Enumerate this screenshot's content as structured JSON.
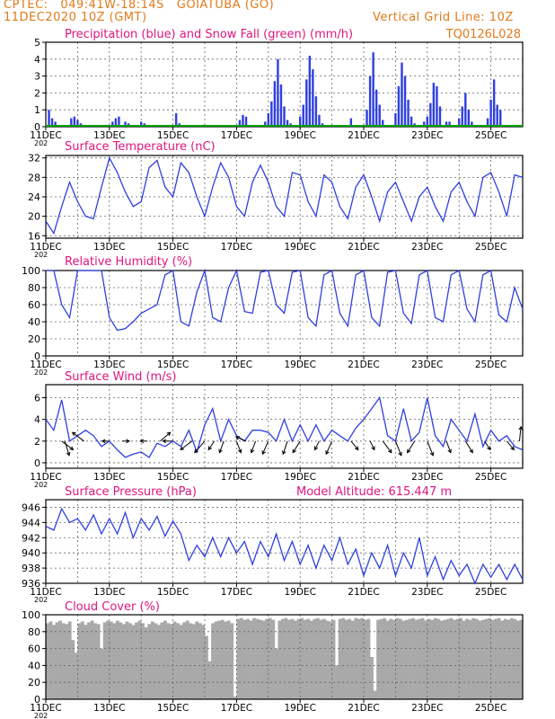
{
  "header": {
    "line1": "CPTEC:   049:41W-18:14S   GOIATUBA (GO)",
    "line2": "11DEC2020 10Z (GMT)",
    "grid_note": "Vertical Grid Line: 10Z",
    "model": "TQ0126L028"
  },
  "colors": {
    "orange": "#e07a1a",
    "magenta": "#e0157f",
    "blue": "#2f3fe0",
    "green": "#00a000",
    "gray": "#a9a9a9",
    "black": "#000000"
  },
  "x_axis": {
    "labels": [
      "11DEC",
      "13DEC",
      "15DEC",
      "17DEC",
      "19DEC",
      "21DEC",
      "23DEC",
      "25DEC"
    ],
    "label_days": [
      0,
      2,
      4,
      6,
      8,
      10,
      12,
      14
    ],
    "year_stub": "202",
    "range_days": [
      0,
      15
    ]
  },
  "chart_data": [
    {
      "id": "precip",
      "type": "bar",
      "title": "Precipitation (blue) and Snow Fall (green) (mm/h)",
      "ylim": [
        0,
        5
      ],
      "yticks": [
        0,
        1,
        2,
        3,
        4,
        5
      ],
      "x": [
        0.1,
        0.2,
        0.3,
        0.5,
        0.8,
        0.9,
        1.0,
        1.1,
        1.2,
        1.6,
        1.8,
        2.1,
        2.2,
        2.3,
        2.5,
        2.6,
        2.7,
        3.0,
        3.1,
        3.2,
        3.3,
        3.4,
        3.6,
        3.8,
        4.1,
        4.2,
        5.5,
        6.1,
        6.2,
        6.3,
        6.9,
        7.0,
        7.1,
        7.2,
        7.3,
        7.4,
        7.5,
        7.6,
        7.7,
        8.0,
        8.1,
        8.2,
        8.3,
        8.4,
        8.5,
        8.6,
        8.7,
        9.5,
        9.6,
        10.1,
        10.2,
        10.3,
        10.4,
        10.5,
        10.6,
        10.7,
        11.0,
        11.1,
        11.2,
        11.3,
        11.4,
        11.5,
        11.6,
        11.9,
        12.0,
        12.1,
        12.2,
        12.3,
        12.4,
        12.6,
        12.7,
        12.8,
        13.0,
        13.1,
        13.2,
        13.3,
        13.4,
        13.9,
        14.0,
        14.1,
        14.2,
        14.3
      ],
      "values": [
        1.0,
        0.5,
        0.3,
        0.1,
        0.5,
        0.6,
        0.4,
        0.2,
        0.1,
        0.1,
        0.1,
        0.3,
        0.5,
        0.6,
        0.3,
        0.2,
        0.1,
        0.3,
        0.2,
        0.1,
        0.1,
        0.1,
        0.1,
        0.1,
        0.8,
        0.2,
        0.1,
        0.4,
        0.7,
        0.6,
        0.3,
        0.8,
        1.5,
        2.7,
        4.0,
        2.5,
        1.2,
        0.4,
        0.2,
        0.6,
        1.3,
        2.8,
        4.2,
        3.4,
        1.8,
        0.7,
        0.2,
        0.1,
        0.5,
        1.0,
        3.0,
        4.4,
        2.2,
        1.3,
        0.4,
        0.1,
        0.8,
        2.4,
        3.8,
        3.0,
        1.6,
        0.6,
        0.2,
        0.3,
        0.6,
        1.4,
        2.6,
        2.4,
        1.2,
        0.3,
        0.3,
        0.1,
        0.5,
        1.2,
        2.0,
        1.0,
        0.3,
        0.5,
        1.6,
        2.8,
        1.3,
        1.0
      ],
      "snow": 0
    },
    {
      "id": "temp",
      "type": "line",
      "title": "Surface Temperature (nC)",
      "ylim": [
        15.5,
        32.5
      ],
      "yticks": [
        16,
        20,
        24,
        28,
        32
      ],
      "x": [
        0.0,
        0.25,
        0.5,
        0.75,
        1.0,
        1.25,
        1.5,
        1.75,
        2.0,
        2.25,
        2.5,
        2.75,
        3.0,
        3.25,
        3.5,
        3.75,
        4.0,
        4.25,
        4.5,
        4.75,
        5.0,
        5.25,
        5.5,
        5.75,
        6.0,
        6.25,
        6.5,
        6.75,
        7.0,
        7.25,
        7.5,
        7.75,
        8.0,
        8.25,
        8.5,
        8.75,
        9.0,
        9.25,
        9.5,
        9.75,
        10.0,
        10.25,
        10.5,
        10.75,
        11.0,
        11.25,
        11.5,
        11.75,
        12.0,
        12.25,
        12.5,
        12.75,
        13.0,
        13.25,
        13.5,
        13.75,
        14.0,
        14.25,
        14.5,
        14.75,
        15.0
      ],
      "values": [
        19,
        16.5,
        22,
        27,
        23,
        20,
        19.5,
        26,
        32,
        29,
        25,
        22,
        23,
        30,
        31.5,
        26,
        24,
        31,
        29,
        24,
        20,
        26,
        31,
        28,
        22,
        20,
        27,
        30.5,
        27,
        22,
        20,
        29,
        28.5,
        23,
        20,
        28.5,
        27,
        22,
        19.5,
        26,
        28.5,
        24,
        19,
        25,
        27,
        23,
        19,
        24,
        26,
        22,
        19,
        25,
        27,
        23,
        20,
        28,
        29,
        25,
        20,
        28.5,
        28
      ]
    },
    {
      "id": "rh",
      "type": "line",
      "title": "Relative Humidity (%)",
      "ylim": [
        0,
        100
      ],
      "yticks": [
        0,
        20,
        40,
        60,
        80,
        100
      ],
      "x": [
        0.0,
        0.25,
        0.5,
        0.75,
        1.0,
        1.25,
        1.5,
        1.75,
        2.0,
        2.25,
        2.5,
        2.75,
        3.0,
        3.25,
        3.5,
        3.75,
        4.0,
        4.25,
        4.5,
        4.75,
        5.0,
        5.25,
        5.5,
        5.75,
        6.0,
        6.25,
        6.5,
        6.75,
        7.0,
        7.25,
        7.5,
        7.75,
        8.0,
        8.25,
        8.5,
        8.75,
        9.0,
        9.25,
        9.5,
        9.75,
        10.0,
        10.25,
        10.5,
        10.75,
        11.0,
        11.25,
        11.5,
        11.75,
        12.0,
        12.25,
        12.5,
        12.75,
        13.0,
        13.25,
        13.5,
        13.75,
        14.0,
        14.25,
        14.5,
        14.75,
        15.0
      ],
      "values": [
        100,
        100,
        60,
        45,
        100,
        100,
        100,
        100,
        45,
        30,
        32,
        40,
        50,
        55,
        60,
        95,
        100,
        40,
        35,
        75,
        100,
        45,
        40,
        80,
        100,
        52,
        50,
        98,
        100,
        60,
        50,
        98,
        100,
        45,
        35,
        95,
        100,
        50,
        35,
        95,
        100,
        45,
        35,
        98,
        100,
        50,
        38,
        95,
        100,
        45,
        40,
        95,
        100,
        55,
        40,
        95,
        100,
        48,
        40,
        80,
        55
      ]
    },
    {
      "id": "wind",
      "type": "line",
      "title": "Surface Wind (m/s)",
      "ylim": [
        -0.5,
        7.2
      ],
      "yticks": [
        0,
        2,
        4,
        6
      ],
      "x": [
        0.0,
        0.25,
        0.5,
        0.75,
        1.0,
        1.25,
        1.5,
        1.75,
        2.0,
        2.25,
        2.5,
        2.75,
        3.0,
        3.25,
        3.5,
        3.75,
        4.0,
        4.25,
        4.5,
        4.75,
        5.0,
        5.25,
        5.5,
        5.75,
        6.0,
        6.25,
        6.5,
        6.75,
        7.0,
        7.25,
        7.5,
        7.75,
        8.0,
        8.25,
        8.5,
        8.75,
        9.0,
        9.25,
        9.5,
        9.75,
        10.0,
        10.25,
        10.5,
        10.75,
        11.0,
        11.25,
        11.5,
        11.75,
        12.0,
        12.25,
        12.5,
        12.75,
        13.0,
        13.25,
        13.5,
        13.75,
        14.0,
        14.25,
        14.5,
        14.75,
        15.0
      ],
      "values": [
        4,
        3,
        5.8,
        2,
        2.5,
        3,
        2.5,
        1.5,
        2,
        1.2,
        0.5,
        0.8,
        1,
        0.5,
        1.8,
        1.5,
        2,
        1.5,
        3,
        1,
        3.5,
        5,
        2,
        4,
        2.5,
        2,
        3,
        3,
        2.8,
        2,
        4,
        2,
        3.5,
        2,
        3.5,
        2,
        3,
        2.5,
        2,
        3.2,
        4,
        5,
        6,
        2.5,
        2,
        5,
        2,
        2.8,
        6,
        2.5,
        1.5,
        4,
        3,
        2,
        4.5,
        1.5,
        3,
        2,
        2.5,
        1.5,
        1.2
      ],
      "arrows": [
        {
          "x": 0.5,
          "u": 0.8,
          "v": -0.6
        },
        {
          "x": 0.6,
          "u": 0.3,
          "v": -1.0
        },
        {
          "x": 1.2,
          "u": -0.8,
          "v": 0.6
        },
        {
          "x": 2.0,
          "u": -0.5,
          "v": 0.0
        },
        {
          "x": 2.4,
          "u": 0.5,
          "v": 0.0
        },
        {
          "x": 3.2,
          "u": -0.5,
          "v": 0.0
        },
        {
          "x": 3.6,
          "u": 0.7,
          "v": 0.6
        },
        {
          "x": 4.0,
          "u": -0.7,
          "v": 0.0
        },
        {
          "x": 4.6,
          "u": -0.8,
          "v": -0.6
        },
        {
          "x": 5.0,
          "u": -0.7,
          "v": -0.8
        },
        {
          "x": 5.3,
          "u": -0.4,
          "v": -0.6
        },
        {
          "x": 5.6,
          "u": -0.3,
          "v": -0.8
        },
        {
          "x": 6.0,
          "u": 0.3,
          "v": -0.8
        },
        {
          "x": 6.3,
          "u": -0.7,
          "v": 0.3
        },
        {
          "x": 6.6,
          "u": -0.3,
          "v": -0.8
        },
        {
          "x": 7.0,
          "u": -0.4,
          "v": -0.9
        },
        {
          "x": 7.6,
          "u": -0.3,
          "v": -0.9
        },
        {
          "x": 8.0,
          "u": -0.5,
          "v": -0.8
        },
        {
          "x": 8.6,
          "u": -0.3,
          "v": -0.6
        },
        {
          "x": 9.0,
          "u": -0.4,
          "v": -0.9
        },
        {
          "x": 9.6,
          "u": 0.5,
          "v": -0.6
        },
        {
          "x": 10.2,
          "u": 0.3,
          "v": -0.6
        },
        {
          "x": 10.6,
          "u": 0.6,
          "v": -0.8
        },
        {
          "x": 11.0,
          "u": 0.4,
          "v": -1.0
        },
        {
          "x": 11.6,
          "u": -0.5,
          "v": -0.8
        },
        {
          "x": 12.0,
          "u": 0.4,
          "v": -1.0
        },
        {
          "x": 12.6,
          "u": 0.3,
          "v": -0.8
        },
        {
          "x": 13.2,
          "u": 0.5,
          "v": -0.8
        },
        {
          "x": 13.8,
          "u": 0.4,
          "v": -0.6
        },
        {
          "x": 14.5,
          "u": 0.5,
          "v": -0.6
        },
        {
          "x": 14.9,
          "u": 0.1,
          "v": 1.0
        }
      ]
    },
    {
      "id": "pressure",
      "type": "line",
      "title": "Surface Pressure (hPa)",
      "subtitle": "Model Altitude: 615.447 m",
      "ylim": [
        936,
        947
      ],
      "yticks": [
        936,
        938,
        940,
        942,
        944,
        946
      ],
      "x": [
        0.0,
        0.25,
        0.5,
        0.75,
        1.0,
        1.25,
        1.5,
        1.75,
        2.0,
        2.25,
        2.5,
        2.75,
        3.0,
        3.25,
        3.5,
        3.75,
        4.0,
        4.25,
        4.5,
        4.75,
        5.0,
        5.25,
        5.5,
        5.75,
        6.0,
        6.25,
        6.5,
        6.75,
        7.0,
        7.25,
        7.5,
        7.75,
        8.0,
        8.25,
        8.5,
        8.75,
        9.0,
        9.25,
        9.5,
        9.75,
        10.0,
        10.25,
        10.5,
        10.75,
        11.0,
        11.25,
        11.5,
        11.75,
        12.0,
        12.25,
        12.5,
        12.75,
        13.0,
        13.25,
        13.5,
        13.75,
        14.0,
        14.25,
        14.5,
        14.75,
        15.0
      ],
      "values": [
        943.5,
        943,
        945.8,
        944,
        944.5,
        943,
        945,
        942.5,
        944.5,
        942.5,
        945.3,
        942,
        944.5,
        943,
        944.8,
        942.2,
        944.2,
        942.5,
        939,
        941,
        939.5,
        942,
        939.5,
        942,
        940,
        941.5,
        938.5,
        941.5,
        939.5,
        942.5,
        939,
        941.5,
        938.5,
        941,
        938,
        941,
        939,
        942,
        938.5,
        940.5,
        937,
        940,
        938,
        941,
        937,
        940,
        938,
        942,
        937,
        939.5,
        936.5,
        939,
        937,
        938.5,
        936,
        938.5,
        936.8,
        938.5,
        936.5,
        938.5,
        936.5
      ]
    },
    {
      "id": "cloud",
      "type": "area",
      "title": "Cloud Cover (%)",
      "ylim": [
        0,
        100
      ],
      "yticks": [
        0,
        20,
        40,
        60,
        80,
        100
      ],
      "x": [
        0.0,
        0.1,
        0.2,
        0.3,
        0.4,
        0.5,
        0.6,
        0.7,
        0.8,
        0.9,
        1.0,
        1.1,
        1.2,
        1.3,
        1.4,
        1.5,
        1.6,
        1.7,
        1.8,
        1.9,
        2.0,
        2.1,
        2.2,
        2.3,
        2.4,
        2.5,
        2.6,
        2.7,
        2.8,
        2.9,
        3.0,
        3.1,
        3.2,
        3.3,
        3.4,
        3.5,
        3.6,
        3.7,
        3.8,
        3.9,
        4.0,
        4.1,
        4.2,
        4.3,
        4.4,
        4.5,
        4.6,
        4.7,
        4.8,
        4.9,
        5.0,
        5.1,
        5.2,
        5.3,
        5.4,
        5.5,
        5.6,
        5.7,
        5.8,
        5.9,
        6.0,
        6.1,
        6.2,
        6.3,
        6.4,
        6.5,
        6.6,
        6.7,
        6.8,
        6.9,
        7.0,
        7.1,
        7.2,
        7.3,
        7.4,
        7.5,
        7.6,
        7.7,
        7.8,
        7.9,
        8.0,
        8.1,
        8.2,
        8.3,
        8.4,
        8.5,
        8.6,
        8.7,
        8.8,
        8.9,
        9.0,
        9.1,
        9.2,
        9.3,
        9.4,
        9.5,
        9.6,
        9.7,
        9.8,
        9.9,
        10.0,
        10.1,
        10.2,
        10.3,
        10.4,
        10.5,
        10.6,
        10.7,
        10.8,
        10.9,
        11.0,
        11.1,
        11.2,
        11.3,
        11.4,
        11.5,
        11.6,
        11.7,
        11.8,
        11.9,
        12.0,
        12.1,
        12.2,
        12.3,
        12.4,
        12.5,
        12.6,
        12.7,
        12.8,
        12.9,
        13.0,
        13.1,
        13.2,
        13.3,
        13.4,
        13.5,
        13.6,
        13.7,
        13.8,
        13.9,
        14.0,
        14.1,
        14.2,
        14.3,
        14.4,
        14.5,
        14.6,
        14.7,
        14.8,
        14.9,
        15.0
      ],
      "values": [
        90,
        92,
        88,
        91,
        93,
        90,
        89,
        92,
        70,
        55,
        90,
        92,
        88,
        91,
        93,
        90,
        89,
        60,
        91,
        93,
        92,
        90,
        93,
        91,
        89,
        92,
        90,
        88,
        91,
        93,
        90,
        85,
        89,
        92,
        90,
        88,
        91,
        93,
        90,
        89,
        92,
        90,
        88,
        91,
        93,
        90,
        89,
        92,
        90,
        88,
        75,
        45,
        90,
        92,
        93,
        94,
        92,
        93,
        90,
        3,
        95,
        96,
        94,
        95,
        93,
        96,
        95,
        94,
        93,
        95,
        96,
        94,
        60,
        93,
        95,
        96,
        94,
        95,
        93,
        95,
        96,
        94,
        95,
        93,
        95,
        96,
        94,
        95,
        93,
        92,
        94,
        40,
        95,
        96,
        94,
        95,
        93,
        96,
        95,
        96,
        94,
        95,
        50,
        10,
        94,
        95,
        96,
        93,
        95,
        94,
        96,
        95,
        93,
        94,
        95,
        96,
        94,
        95,
        96,
        93,
        95,
        94,
        96,
        95,
        93,
        94,
        95,
        96,
        94,
        95,
        96,
        93,
        95,
        94,
        96,
        95,
        93,
        94,
        95,
        96,
        94,
        95,
        96,
        93,
        95,
        94,
        96,
        95,
        93,
        94,
        95
      ]
    }
  ]
}
